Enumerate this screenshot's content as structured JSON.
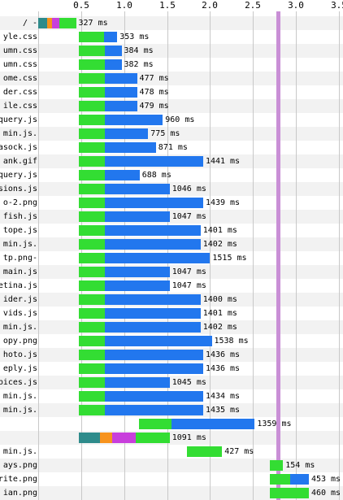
{
  "chart_data": {
    "type": "bar",
    "title": "",
    "xlabel": "",
    "ylabel": "",
    "x_ticks": [
      "0.5",
      "1.0",
      "1.5",
      "2.0",
      "2.5",
      "3.0",
      "3.5"
    ],
    "xlim": [
      0,
      3.5
    ],
    "marker_at_seconds": 2.77,
    "colors": {
      "dns": "#2e8b8b",
      "connect": "#f7931e",
      "ssl": "#c83fdc",
      "ttfb": "#33dd33",
      "download": "#2277ee",
      "marker": "#c98fd6",
      "row_alt": "#f2f2f2"
    },
    "rows": [
      {
        "label": "- /",
        "start": 0.0,
        "ttfb": 0.44,
        "end": 0.44,
        "time": "327 ms",
        "segments": [
          [
            "dns",
            0.0,
            0.1
          ],
          [
            "connect",
            0.1,
            0.16
          ],
          [
            "ssl",
            0.16,
            0.25
          ],
          [
            "ttfb",
            0.25,
            0.44
          ]
        ]
      },
      {
        "label": "yle.css",
        "start": 0.47,
        "ttfb": 0.77,
        "end": 0.92,
        "time": "353 ms"
      },
      {
        "label": "umn.css",
        "start": 0.47,
        "ttfb": 0.78,
        "end": 0.97,
        "time": "384 ms"
      },
      {
        "label": "umn.css",
        "start": 0.47,
        "ttfb": 0.78,
        "end": 0.97,
        "time": "382 ms"
      },
      {
        "label": "ome.css",
        "start": 0.47,
        "ttfb": 0.78,
        "end": 1.15,
        "time": "477 ms"
      },
      {
        "label": "der.css",
        "start": 0.47,
        "ttfb": 0.78,
        "end": 1.15,
        "time": "478 ms"
      },
      {
        "label": "ile.css",
        "start": 0.47,
        "ttfb": 0.78,
        "end": 1.15,
        "time": "479 ms"
      },
      {
        "label": "query.js",
        "start": 0.47,
        "ttfb": 0.78,
        "end": 1.45,
        "time": "960 ms"
      },
      {
        "label": ".min.js",
        "start": 0.47,
        "ttfb": 0.78,
        "end": 1.28,
        "time": "775 ms"
      },
      {
        "label": "asock.js",
        "start": 0.47,
        "ttfb": 0.78,
        "end": 1.37,
        "time": "871 ms"
      },
      {
        "label": "ank.gif",
        "start": 0.47,
        "ttfb": 0.78,
        "end": 1.92,
        "time": "1441 ms"
      },
      {
        "label": "query.js",
        "start": 0.47,
        "ttfb": 0.78,
        "end": 1.18,
        "time": "688 ms"
      },
      {
        "label": "sions.js",
        "start": 0.47,
        "ttfb": 0.78,
        "end": 1.53,
        "time": "1046 ms"
      },
      {
        "label": "o-2.png",
        "start": 0.47,
        "ttfb": 0.78,
        "end": 1.92,
        "time": "1439 ms"
      },
      {
        "label": "fish.js",
        "start": 0.47,
        "ttfb": 0.78,
        "end": 1.53,
        "time": "1047 ms"
      },
      {
        "label": "tope.js",
        "start": 0.47,
        "ttfb": 0.78,
        "end": 1.89,
        "time": "1401 ms"
      },
      {
        "label": ".min.js",
        "start": 0.47,
        "ttfb": 0.78,
        "end": 1.89,
        "time": "1402 ms"
      },
      {
        "label": "-tp.png",
        "start": 0.47,
        "ttfb": 0.78,
        "end": 2.0,
        "time": "1515 ms"
      },
      {
        "label": "main.js",
        "start": 0.47,
        "ttfb": 0.78,
        "end": 1.53,
        "time": "1047 ms"
      },
      {
        "label": "etina.js",
        "start": 0.47,
        "ttfb": 0.78,
        "end": 1.53,
        "time": "1047 ms"
      },
      {
        "label": "ider.js",
        "start": 0.47,
        "ttfb": 0.78,
        "end": 1.89,
        "time": "1400 ms"
      },
      {
        "label": "vids.js",
        "start": 0.47,
        "ttfb": 0.78,
        "end": 1.89,
        "time": "1401 ms"
      },
      {
        "label": ".min.js",
        "start": 0.47,
        "ttfb": 0.78,
        "end": 1.89,
        "time": "1402 ms"
      },
      {
        "label": "opy.png",
        "start": 0.47,
        "ttfb": 0.78,
        "end": 2.02,
        "time": "1538 ms"
      },
      {
        "label": "hoto.js",
        "start": 0.47,
        "ttfb": 0.78,
        "end": 1.92,
        "time": "1436 ms"
      },
      {
        "label": "eply.js",
        "start": 0.47,
        "ttfb": 0.78,
        "end": 1.92,
        "time": "1436 ms"
      },
      {
        "label": "pices.js",
        "start": 0.47,
        "ttfb": 0.78,
        "end": 1.53,
        "time": "1045 ms"
      },
      {
        "label": ".min.js",
        "start": 0.47,
        "ttfb": 0.78,
        "end": 1.92,
        "time": "1434 ms"
      },
      {
        "label": ".min.js",
        "start": 0.47,
        "ttfb": 0.78,
        "end": 1.92,
        "time": "1435 ms"
      },
      {
        "label": "",
        "start": 1.17,
        "ttfb": 1.55,
        "end": 2.52,
        "time": "1359 ms"
      },
      {
        "label": "",
        "start": 0.47,
        "ttfb": 1.53,
        "end": 1.53,
        "time": "1091 ms",
        "segments": [
          [
            "dns",
            0.47,
            0.72
          ],
          [
            "connect",
            0.72,
            0.86
          ],
          [
            "ssl",
            0.86,
            1.14
          ],
          [
            "ttfb",
            1.14,
            1.53
          ]
        ]
      },
      {
        "label": ".min.js",
        "start": 1.73,
        "ttfb": 2.14,
        "end": 2.14,
        "time": "427 ms"
      },
      {
        "label": "ays.png",
        "start": 2.7,
        "ttfb": 2.85,
        "end": 2.85,
        "time": "154 ms"
      },
      {
        "label": "rite.png",
        "start": 2.7,
        "ttfb": 2.93,
        "end": 3.15,
        "time": "453 ms"
      },
      {
        "label": "ian.png",
        "start": 2.7,
        "ttfb": 3.15,
        "end": 3.15,
        "time": "460 ms"
      }
    ]
  }
}
